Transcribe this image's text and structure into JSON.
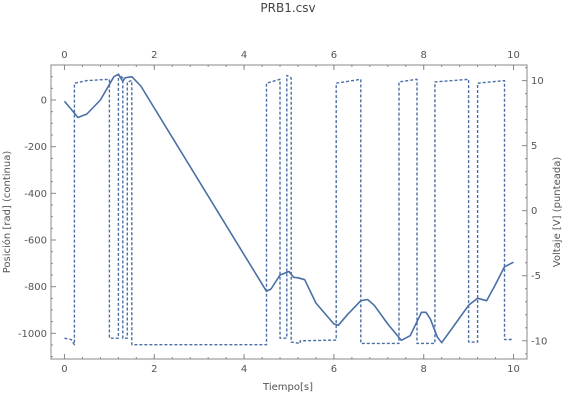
{
  "chart_data": {
    "type": "line",
    "title": "PRB1.csv",
    "xlabel": "Tiempo[s]",
    "ylabel": "Posición [rad] (continua)",
    "y2label": "Voltaje [V] (punteada)",
    "xlim": [
      -0.3,
      10.3
    ],
    "ylim": [
      -1110,
      150
    ],
    "y2lim": [
      -11.4,
      11.2
    ],
    "x_ticks": [
      "0",
      "2",
      "4",
      "6",
      "8",
      "10"
    ],
    "y_ticks": [
      "0",
      "-200",
      "-400",
      "-600",
      "-800",
      "-1000"
    ],
    "y2_ticks": [
      "10",
      "5",
      "0",
      "-5",
      "-10"
    ],
    "colors": {
      "series": "#4a6fa5",
      "frame": "#888888"
    },
    "series": [
      {
        "axis": "left",
        "style": "solid",
        "points": [
          [
            0,
            -5
          ],
          [
            0.15,
            -40
          ],
          [
            0.3,
            -75
          ],
          [
            0.5,
            -60
          ],
          [
            0.8,
            0
          ],
          [
            1.1,
            100
          ],
          [
            1.2,
            110
          ],
          [
            1.3,
            80
          ],
          [
            1.35,
            95
          ],
          [
            1.5,
            100
          ],
          [
            1.7,
            60
          ],
          [
            4.5,
            -820
          ],
          [
            4.6,
            -810
          ],
          [
            4.8,
            -750
          ],
          [
            5.0,
            -735
          ],
          [
            5.1,
            -760
          ],
          [
            5.2,
            -762
          ],
          [
            5.35,
            -770
          ],
          [
            5.6,
            -870
          ],
          [
            6.0,
            -960
          ],
          [
            6.1,
            -965
          ],
          [
            6.3,
            -920
          ],
          [
            6.6,
            -860
          ],
          [
            6.75,
            -855
          ],
          [
            6.9,
            -880
          ],
          [
            7.2,
            -960
          ],
          [
            7.5,
            -1030
          ],
          [
            7.7,
            -1010
          ],
          [
            7.95,
            -910
          ],
          [
            8.05,
            -910
          ],
          [
            8.15,
            -940
          ],
          [
            8.3,
            -1015
          ],
          [
            8.4,
            -1040
          ],
          [
            8.7,
            -960
          ],
          [
            9.0,
            -880
          ],
          [
            9.2,
            -850
          ],
          [
            9.4,
            -860
          ],
          [
            9.6,
            -790
          ],
          [
            9.8,
            -715
          ],
          [
            10.0,
            -695
          ]
        ]
      },
      {
        "axis": "right",
        "style": "dashed",
        "points": [
          [
            0,
            -9.8
          ],
          [
            0.15,
            -9.9
          ],
          [
            0.2,
            -10.2
          ],
          [
            0.22,
            -10.3
          ],
          [
            0.22,
            9.8
          ],
          [
            0.5,
            10
          ],
          [
            1.0,
            10.1
          ],
          [
            1.0,
            -9.8
          ],
          [
            1.2,
            -9.8
          ],
          [
            1.2,
            10.5
          ],
          [
            1.3,
            10.2
          ],
          [
            1.3,
            -9.8
          ],
          [
            1.4,
            -9.8
          ],
          [
            1.4,
            9.9
          ],
          [
            1.5,
            10
          ],
          [
            1.5,
            -10.3
          ],
          [
            1.7,
            -10.3
          ],
          [
            4.5,
            -10.3
          ],
          [
            4.5,
            9.8
          ],
          [
            4.8,
            10.1
          ],
          [
            4.8,
            -9.8
          ],
          [
            4.95,
            -9.8
          ],
          [
            4.95,
            10.4
          ],
          [
            5.05,
            10.2
          ],
          [
            5.05,
            -10.1
          ],
          [
            5.25,
            -10.2
          ],
          [
            5.25,
            -10
          ],
          [
            6.05,
            -9.95
          ],
          [
            6.05,
            9.8
          ],
          [
            6.6,
            10.1
          ],
          [
            6.6,
            -10.2
          ],
          [
            7.45,
            -10.2
          ],
          [
            7.45,
            9.9
          ],
          [
            7.85,
            10.1
          ],
          [
            7.85,
            -10.2
          ],
          [
            8.25,
            -10.2
          ],
          [
            8.25,
            9.9
          ],
          [
            9.0,
            10.1
          ],
          [
            9.0,
            -10.1
          ],
          [
            9.2,
            -10.1
          ],
          [
            9.2,
            9.8
          ],
          [
            9.8,
            10
          ],
          [
            9.8,
            -9.9
          ],
          [
            10.0,
            -9.9
          ]
        ]
      }
    ]
  }
}
